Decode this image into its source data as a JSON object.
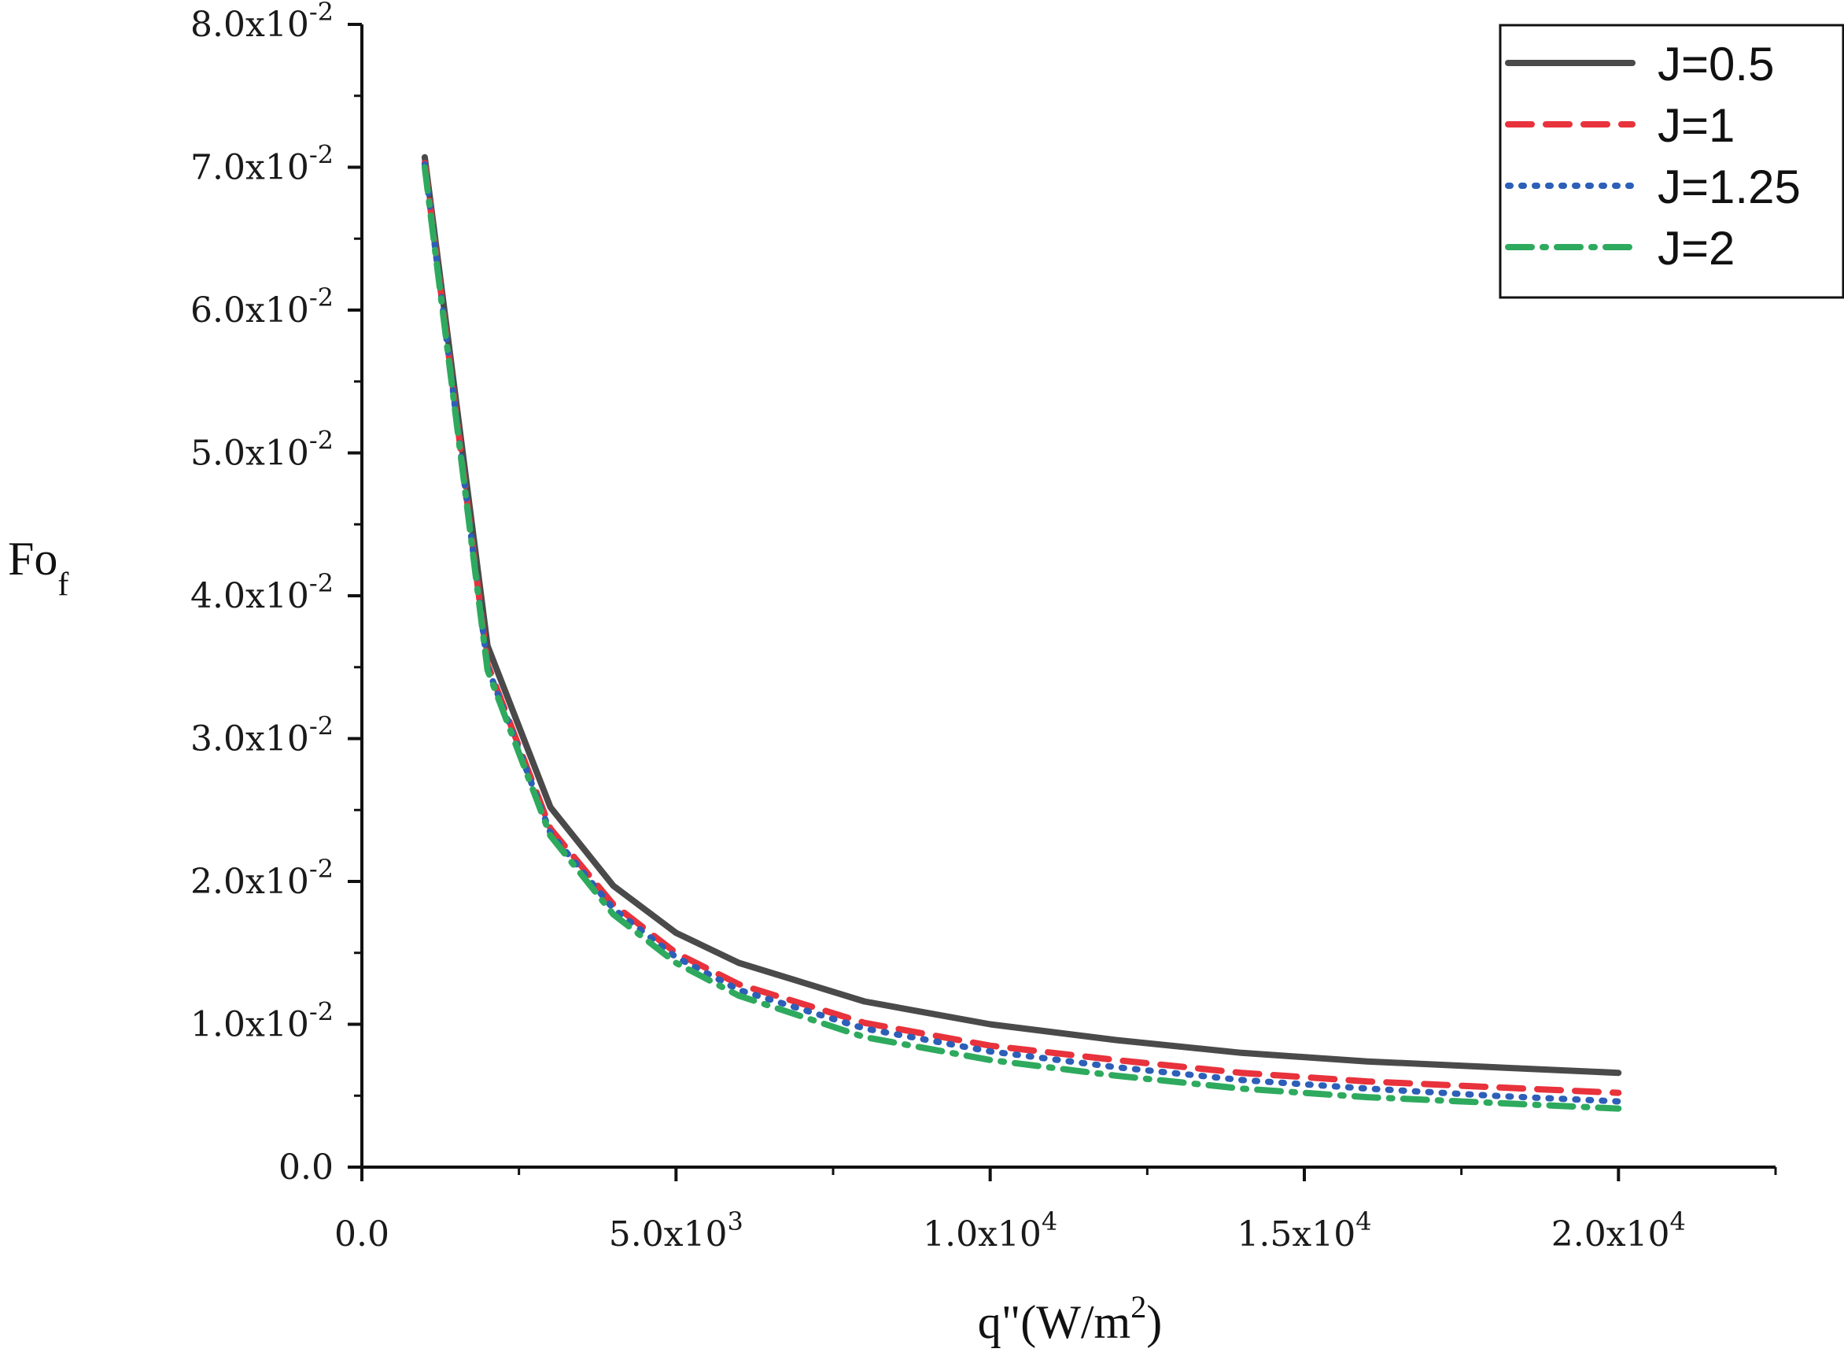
{
  "chart_data": {
    "type": "line",
    "title": "",
    "xlabel": "q\"(W/m²)",
    "xlabel_main": "q\"(W/m",
    "xlabel_sup": "2",
    "xlabel_tail": ")",
    "ylabel": "Fo_f",
    "ylabel_main": "Fo",
    "ylabel_sub": "f",
    "xlim": [
      0,
      22500
    ],
    "ylim": [
      0,
      0.08
    ],
    "x_ticks": [
      {
        "value": 0,
        "label": "0.0",
        "mantissa": "0.0",
        "exp": ""
      },
      {
        "value": 5000,
        "label": "5.0x10^3",
        "mantissa": "5.0x10",
        "exp": "3"
      },
      {
        "value": 10000,
        "label": "1.0x10^4",
        "mantissa": "1.0x10",
        "exp": "4"
      },
      {
        "value": 15000,
        "label": "1.5x10^4",
        "mantissa": "1.5x10",
        "exp": "4"
      },
      {
        "value": 20000,
        "label": "2.0x10^4",
        "mantissa": "2.0x10",
        "exp": "4"
      }
    ],
    "y_ticks": [
      {
        "value": 0,
        "label": "0.0",
        "mantissa": "0.0",
        "exp": ""
      },
      {
        "value": 0.01,
        "label": "1.0x10^-2",
        "mantissa": "1.0x10",
        "exp": "-2"
      },
      {
        "value": 0.02,
        "label": "2.0x10^-2",
        "mantissa": "2.0x10",
        "exp": "-2"
      },
      {
        "value": 0.03,
        "label": "3.0x10^-2",
        "mantissa": "3.0x10",
        "exp": "-2"
      },
      {
        "value": 0.04,
        "label": "4.0x10^-2",
        "mantissa": "4.0x10",
        "exp": "-2"
      },
      {
        "value": 0.05,
        "label": "5.0x10^-2",
        "mantissa": "5.0x10",
        "exp": "-2"
      },
      {
        "value": 0.06,
        "label": "6.0x10^-2",
        "mantissa": "6.0x10",
        "exp": "-2"
      },
      {
        "value": 0.07,
        "label": "7.0x10^-2",
        "mantissa": "7.0x10",
        "exp": "-2"
      },
      {
        "value": 0.08,
        "label": "8.0x10^-2",
        "mantissa": "8.0x10",
        "exp": "-2"
      }
    ],
    "x_minor_step": 2500,
    "y_minor_step": 0.005,
    "grid": false,
    "legend_position": "top-right",
    "x": [
      1000,
      2000,
      3000,
      4000,
      5000,
      6000,
      8000,
      10000,
      12000,
      14000,
      16000,
      18000,
      20000
    ],
    "series": [
      {
        "name": "J=0.5",
        "color": "#4a4a4a",
        "dash": "solid",
        "values": [
          0.0707,
          0.0365,
          0.0252,
          0.0197,
          0.0164,
          0.0143,
          0.0116,
          0.01,
          0.0089,
          0.008,
          0.0074,
          0.007,
          0.0066
        ]
      },
      {
        "name": "J=1",
        "color": "#e8323c",
        "dash": "dashed",
        "values": [
          0.0703,
          0.0352,
          0.0237,
          0.0184,
          0.015,
          0.0128,
          0.0101,
          0.0085,
          0.0075,
          0.0066,
          0.006,
          0.0056,
          0.0052
        ]
      },
      {
        "name": "J=1.25",
        "color": "#2d5fb8",
        "dash": "dotted",
        "values": [
          0.0702,
          0.035,
          0.0234,
          0.0181,
          0.0147,
          0.0124,
          0.0097,
          0.0081,
          0.007,
          0.0061,
          0.0055,
          0.005,
          0.0046
        ]
      },
      {
        "name": "J=2",
        "color": "#2eaa5e",
        "dash": "dashdot",
        "values": [
          0.07,
          0.0348,
          0.0232,
          0.0177,
          0.0143,
          0.012,
          0.0091,
          0.0075,
          0.0064,
          0.0055,
          0.0049,
          0.0045,
          0.0041
        ]
      }
    ]
  }
}
